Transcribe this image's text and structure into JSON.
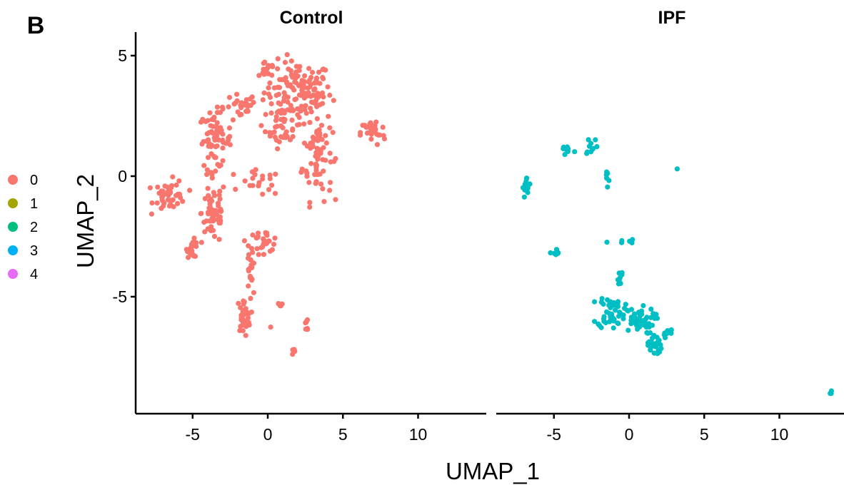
{
  "panel_label": "B",
  "chart_data": {
    "type": "scatter",
    "xlabel": "UMAP_1",
    "ylabel": "UMAP_2",
    "xlim": [
      -8.5,
      14.5
    ],
    "ylim": [
      -9.8,
      5.2
    ],
    "x_ticks": [
      -5,
      0,
      5,
      10
    ],
    "y_ticks": [
      5,
      0,
      -5
    ],
    "grid": false,
    "legend_position": "left",
    "legend": [
      {
        "label": "0",
        "color": "#F8766D"
      },
      {
        "label": "1",
        "color": "#A3A500"
      },
      {
        "label": "2",
        "color": "#00BF7D"
      },
      {
        "label": "3",
        "color": "#00B0F6"
      },
      {
        "label": "4",
        "color": "#E76BF3"
      }
    ],
    "facets": [
      {
        "title": "Control",
        "clusters": [
          {
            "cluster": "0",
            "color": "#F8766D",
            "regions": [
              {
                "cx": 2.0,
                "cy": 3.5,
                "rx": 2.5,
                "ry": 1.4,
                "n": 140
              },
              {
                "cx": 0.0,
                "cy": 4.5,
                "rx": 0.6,
                "ry": 0.5,
                "n": 14
              },
              {
                "cx": 3.3,
                "cy": 1.0,
                "rx": 1.1,
                "ry": 2.2,
                "n": 70
              },
              {
                "cx": 1.0,
                "cy": 2.0,
                "rx": 1.3,
                "ry": 0.9,
                "n": 35
              },
              {
                "cx": -3.5,
                "cy": 1.5,
                "rx": 1.2,
                "ry": 1.3,
                "n": 70
              },
              {
                "cx": -3.6,
                "cy": -1.5,
                "rx": 0.9,
                "ry": 1.5,
                "n": 60
              },
              {
                "cx": -1.8,
                "cy": 2.8,
                "rx": 1.2,
                "ry": 0.7,
                "n": 25
              },
              {
                "cx": -0.5,
                "cy": -0.3,
                "rx": 1.5,
                "ry": 0.6,
                "n": 20
              },
              {
                "cx": -6.5,
                "cy": -0.8,
                "rx": 1.2,
                "ry": 0.7,
                "n": 45
              },
              {
                "cx": -5.0,
                "cy": -3.0,
                "rx": 0.4,
                "ry": 0.4,
                "n": 22
              },
              {
                "cx": -0.3,
                "cy": -2.7,
                "rx": 1.2,
                "ry": 0.5,
                "n": 30
              },
              {
                "cx": -1.2,
                "cy": -4.0,
                "rx": 0.25,
                "ry": 1.1,
                "n": 20
              },
              {
                "cx": -1.6,
                "cy": -5.8,
                "rx": 0.5,
                "ry": 0.8,
                "n": 35
              },
              {
                "cx": 7.0,
                "cy": 1.8,
                "rx": 0.9,
                "ry": 0.6,
                "n": 35
              },
              {
                "cx": 0.8,
                "cy": -5.3,
                "rx": 0.2,
                "ry": 0.3,
                "n": 6
              },
              {
                "cx": 2.6,
                "cy": -6.2,
                "rx": 0.2,
                "ry": 0.4,
                "n": 7
              },
              {
                "cx": 1.8,
                "cy": -7.3,
                "rx": 0.2,
                "ry": 0.2,
                "n": 4
              },
              {
                "cx": 0.2,
                "cy": -6.2,
                "rx": 0.1,
                "ry": 0.1,
                "n": 1
              }
            ]
          }
        ]
      },
      {
        "title": "IPF",
        "clusters": [
          {
            "cluster": "3",
            "color": "#00BFC4",
            "regions": [
              {
                "cx": -4.2,
                "cy": 1.1,
                "rx": 0.6,
                "ry": 0.3,
                "n": 8
              },
              {
                "cx": -2.5,
                "cy": 1.3,
                "rx": 0.5,
                "ry": 0.5,
                "n": 10
              },
              {
                "cx": -1.4,
                "cy": 0.1,
                "rx": 0.4,
                "ry": 0.5,
                "n": 6
              },
              {
                "cx": 3.2,
                "cy": 0.3,
                "rx": 0.05,
                "ry": 0.05,
                "n": 1
              },
              {
                "cx": -6.8,
                "cy": -0.5,
                "rx": 0.3,
                "ry": 0.5,
                "n": 14
              },
              {
                "cx": -4.9,
                "cy": -3.2,
                "rx": 0.3,
                "ry": 0.2,
                "n": 10
              },
              {
                "cx": -0.5,
                "cy": -2.7,
                "rx": 1.0,
                "ry": 0.15,
                "n": 6
              },
              {
                "cx": -0.6,
                "cy": -4.2,
                "rx": 0.3,
                "ry": 0.5,
                "n": 8
              },
              {
                "cx": -1.2,
                "cy": -5.6,
                "rx": 1.0,
                "ry": 0.8,
                "n": 50
              },
              {
                "cx": 0.6,
                "cy": -6.0,
                "rx": 1.2,
                "ry": 0.6,
                "n": 45
              },
              {
                "cx": 1.7,
                "cy": -7.0,
                "rx": 0.5,
                "ry": 0.5,
                "n": 30
              },
              {
                "cx": 2.5,
                "cy": -6.5,
                "rx": 0.5,
                "ry": 0.2,
                "n": 8
              },
              {
                "cx": 13.4,
                "cy": -9.0,
                "rx": 0.1,
                "ry": 0.1,
                "n": 4
              }
            ]
          }
        ]
      }
    ]
  }
}
